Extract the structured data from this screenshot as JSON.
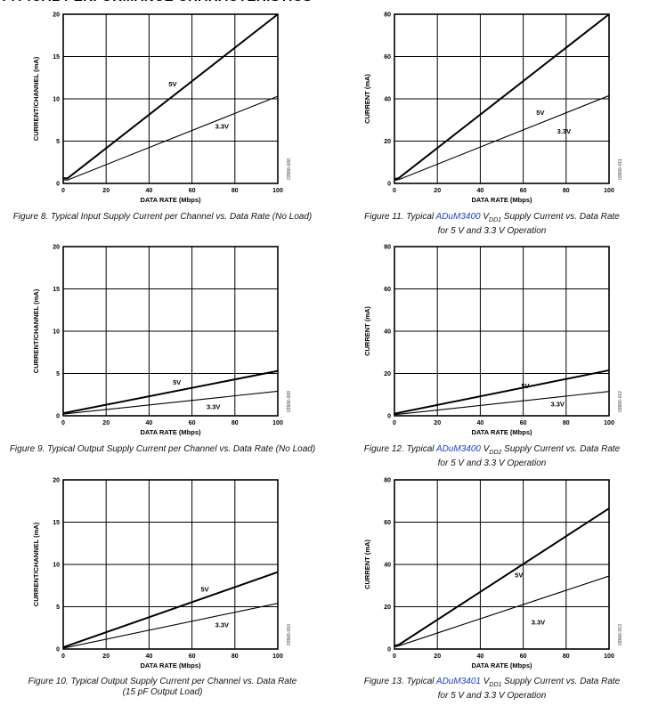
{
  "page": {
    "header": "TYPICAL PERFORMANCE CHARACTERISTICS"
  },
  "chart_data": [
    {
      "type": "line",
      "figure": "fig8",
      "title": "",
      "xlabel": "DATA RATE (Mbps)",
      "ylabel": "CURRENT/CHANNEL (mA)",
      "xlim": [
        0,
        100
      ],
      "ylim": [
        0,
        20
      ],
      "xticks": [
        0,
        20,
        40,
        60,
        80,
        100
      ],
      "yticks": [
        0,
        5,
        10,
        15,
        20
      ],
      "grid": true,
      "code": "03966-008",
      "series": [
        {
          "name": "5V",
          "label_at": [
            51,
            11.5
          ],
          "x": [
            0,
            2,
            100
          ],
          "y": [
            0.6,
            0.6,
            20
          ]
        },
        {
          "name": "3.3V",
          "label_at": [
            74,
            6.5
          ],
          "x": [
            0,
            2,
            100
          ],
          "y": [
            0.4,
            0.4,
            10.3
          ]
        }
      ],
      "caption": {
        "pre": "Figure 8. Typical Input Supply Current per Channel vs. Data Rate (No Load)",
        "link": "",
        "mid": "",
        "sub": "",
        "post": "",
        "line2": ""
      }
    },
    {
      "type": "line",
      "figure": "fig11",
      "title": "",
      "xlabel": "DATA RATE (Mbps)",
      "ylabel": "CURRENT (mA)",
      "xlim": [
        0,
        100
      ],
      "ylim": [
        0,
        80
      ],
      "xticks": [
        0,
        20,
        40,
        60,
        80,
        100
      ],
      "yticks": [
        0,
        20,
        40,
        60,
        80
      ],
      "grid": true,
      "code": "03966-011",
      "series": [
        {
          "name": "5V",
          "label_at": [
            68,
            32.5
          ],
          "x": [
            0,
            2,
            100
          ],
          "y": [
            2,
            2.5,
            80
          ]
        },
        {
          "name": "3.3V",
          "label_at": [
            79,
            23.5
          ],
          "x": [
            0,
            2,
            100
          ],
          "y": [
            1.5,
            1.8,
            41.5
          ]
        }
      ],
      "caption": {
        "pre": "Figure 11. Typical ",
        "link": "ADuM3400",
        "mid": " V",
        "sub": "DD1",
        "post": " Supply Current vs. Data Rate",
        "line2": "for 5 V and 3.3 V Operation"
      }
    },
    {
      "type": "line",
      "figure": "fig9",
      "title": "",
      "xlabel": "DATA RATE (Mbps)",
      "ylabel": "CURRENT/CHANNEL (mA)",
      "xlim": [
        0,
        100
      ],
      "ylim": [
        0,
        20
      ],
      "xticks": [
        0,
        20,
        40,
        60,
        80,
        100
      ],
      "yticks": [
        0,
        5,
        10,
        15,
        20
      ],
      "grid": true,
      "code": "03966-009",
      "series": [
        {
          "name": "5V",
          "label_at": [
            53,
            3.7
          ],
          "x": [
            0,
            100
          ],
          "y": [
            0.3,
            5.3
          ]
        },
        {
          "name": "3.3V",
          "label_at": [
            70,
            0.8
          ],
          "x": [
            0,
            100
          ],
          "y": [
            0.2,
            2.9
          ]
        }
      ],
      "caption": {
        "pre": "Figure 9. Typical Output Supply Current per Channel vs. Data Rate (No Load)",
        "link": "",
        "mid": "",
        "sub": "",
        "post": "",
        "line2": ""
      }
    },
    {
      "type": "line",
      "figure": "fig12",
      "title": "",
      "xlabel": "DATA RATE (Mbps)",
      "ylabel": "CURRENT (mA)",
      "xlim": [
        0,
        100
      ],
      "ylim": [
        0,
        80
      ],
      "xticks": [
        0,
        20,
        40,
        60,
        80,
        100
      ],
      "yticks": [
        0,
        20,
        40,
        60,
        80
      ],
      "grid": true,
      "code": "03966-012",
      "series": [
        {
          "name": "5V",
          "label_at": [
            61,
            13
          ],
          "x": [
            0,
            100
          ],
          "y": [
            1,
            21.5
          ]
        },
        {
          "name": "3.3V",
          "label_at": [
            76,
            4.5
          ],
          "x": [
            0,
            100
          ],
          "y": [
            0.5,
            11.5
          ]
        }
      ],
      "caption": {
        "pre": "Figure 12. Typical ",
        "link": "ADuM3400",
        "mid": " V",
        "sub": "DD2",
        "post": " Supply Current vs. Data Rate",
        "line2": "for 5 V and 3.3 V Operation"
      }
    },
    {
      "type": "line",
      "figure": "fig10",
      "title": "",
      "xlabel": "DATA RATE (Mbps)",
      "ylabel": "CURRENT/CHANNEL (mA)",
      "xlim": [
        0,
        100
      ],
      "ylim": [
        0,
        20
      ],
      "xticks": [
        0,
        20,
        40,
        60,
        80,
        100
      ],
      "yticks": [
        0,
        5,
        10,
        15,
        20
      ],
      "grid": true,
      "code": "03966-010",
      "series": [
        {
          "name": "5V",
          "label_at": [
            66,
            6.8
          ],
          "x": [
            0,
            100
          ],
          "y": [
            0.2,
            9.1
          ]
        },
        {
          "name": "3.3V",
          "label_at": [
            74,
            2.6
          ],
          "x": [
            0,
            100
          ],
          "y": [
            0.1,
            5.4
          ]
        }
      ],
      "caption": {
        "pre": "Figure 10. Typical Output Supply Current per Channel vs. Data Rate",
        "link": "",
        "mid": "",
        "sub": "",
        "post": "",
        "line2": "(15 pF Output Load)"
      }
    },
    {
      "type": "line",
      "figure": "fig13",
      "title": "",
      "xlabel": "DATA RATE (Mbps)",
      "ylabel": "CURRENT (mA)",
      "xlim": [
        0,
        100
      ],
      "ylim": [
        0,
        80
      ],
      "xticks": [
        0,
        20,
        40,
        60,
        80,
        100
      ],
      "yticks": [
        0,
        20,
        40,
        60,
        80
      ],
      "grid": true,
      "code": "03966-013",
      "series": [
        {
          "name": "5V",
          "label_at": [
            58,
            34
          ],
          "x": [
            0,
            2,
            100
          ],
          "y": [
            1.5,
            2,
            66.5
          ]
        },
        {
          "name": "3.3V",
          "label_at": [
            67,
            11.5
          ],
          "x": [
            0,
            2,
            100
          ],
          "y": [
            1,
            1.5,
            34.5
          ]
        }
      ],
      "caption": {
        "pre": "Figure 13. Typical ",
        "link": "ADuM3401",
        "mid": " V",
        "sub": "DD1",
        "post": " Supply Current vs. Data Rate",
        "line2": "for 5 V and 3.3 V Operation"
      }
    }
  ]
}
